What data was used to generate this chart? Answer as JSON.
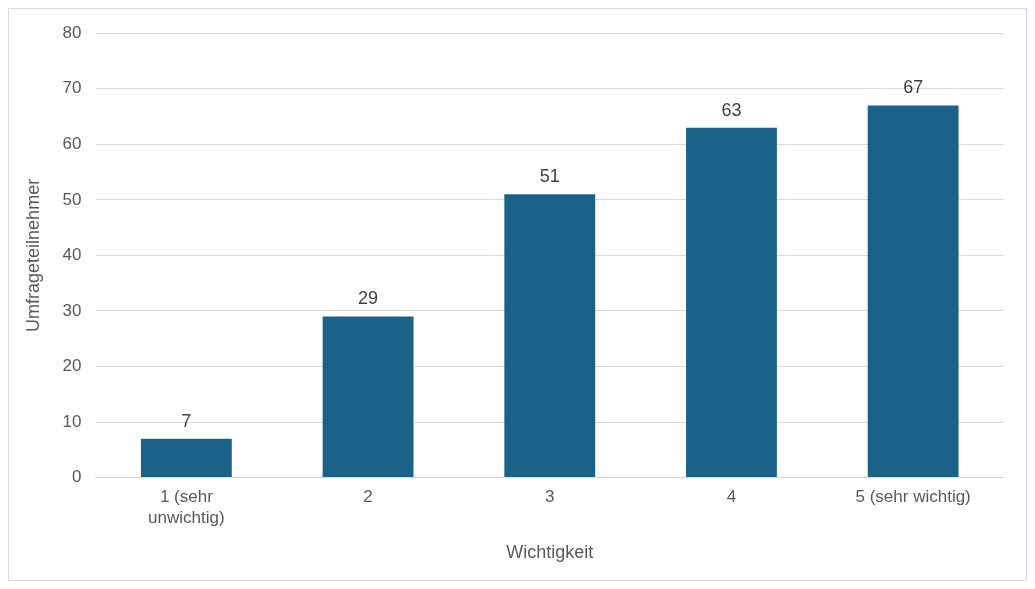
{
  "chart_data": {
    "type": "bar",
    "xlabel": "Wichtigkeit",
    "ylabel": "Umfrageteilnehmer",
    "categories": [
      "1 (sehr unwichtig)",
      "2",
      "3",
      "4",
      "5 (sehr wichtig)"
    ],
    "values": [
      7,
      29,
      51,
      63,
      67
    ],
    "color": "#1b6288",
    "ylim": [
      0,
      80
    ],
    "yticks": [
      0,
      10,
      20,
      30,
      40,
      50,
      60,
      70,
      80
    ],
    "grid": "y",
    "data_labels": true
  }
}
